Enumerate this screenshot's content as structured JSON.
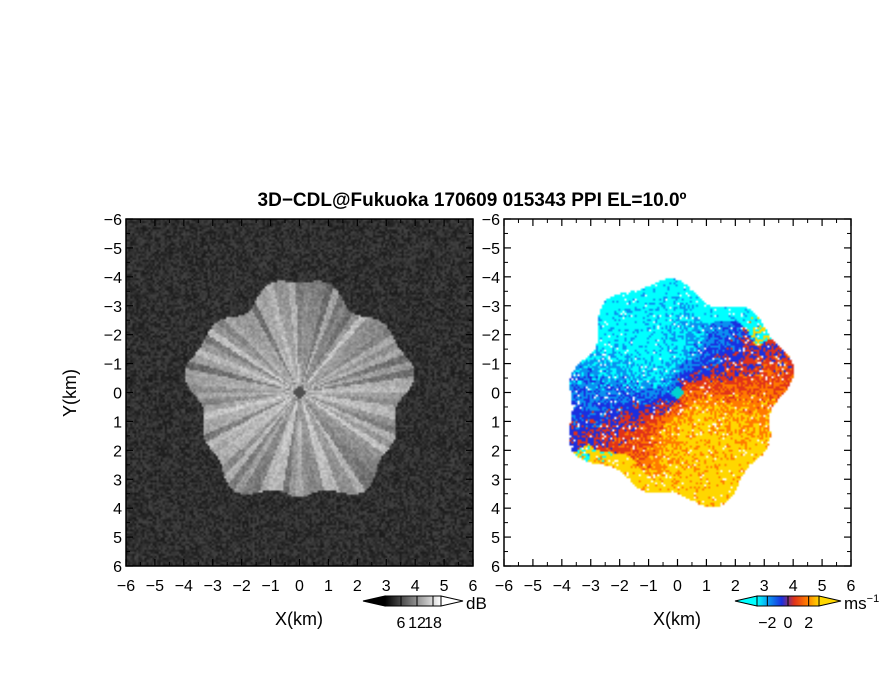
{
  "chart_data": [
    {
      "type": "heatmap",
      "title": "3D−CDL@Fukuoka 170609 015343 PPI EL=10.0º",
      "panel": "left",
      "xlabel": "X(km)",
      "ylabel": "Y(km)",
      "xlim": [
        -6,
        6
      ],
      "ylim": [
        -6,
        6
      ],
      "xticks": [
        "−6",
        "−5",
        "−4",
        "−3",
        "−2",
        "−1",
        "0",
        "1",
        "2",
        "3",
        "4",
        "5",
        "6"
      ],
      "yticks": [
        "6",
        "5",
        "4",
        "3",
        "2",
        "1",
        "0",
        "−1",
        "−2",
        "−3",
        "−4",
        "−5",
        "−6"
      ],
      "colorbar": {
        "unit": "dB",
        "ticks": [
          "6",
          "12",
          "18"
        ],
        "range": [
          0,
          21
        ],
        "colors": [
          "#000000",
          "#ffffff"
        ]
      },
      "field": {
        "description_value_range_dB": [
          2,
          18
        ],
        "echo_radius_km": 3.7,
        "blind_radius_km": 0.2
      }
    },
    {
      "type": "heatmap",
      "panel": "right",
      "xlabel": "X(km)",
      "ylabel": "",
      "xlim": [
        -6,
        6
      ],
      "ylim": [
        -6,
        6
      ],
      "xticks": [
        "−6",
        "−5",
        "−4",
        "−3",
        "−2",
        "−1",
        "0",
        "1",
        "2",
        "3",
        "4",
        "5",
        "6"
      ],
      "colorbar": {
        "unit": "ms−1",
        "ticks": [
          "−2",
          "0",
          "2"
        ],
        "range": [
          -3,
          3
        ],
        "colors": [
          "#00ffff",
          "#0a90f0",
          "#1a2fe0",
          "#e0321a",
          "#ff7a00",
          "#ffd700"
        ]
      },
      "field": {
        "velocity_range_ms": [
          -3,
          3
        ],
        "echo_radius_km": 3.7
      }
    }
  ]
}
